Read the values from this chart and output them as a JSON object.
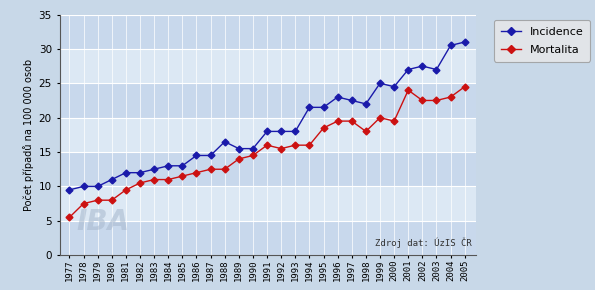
{
  "years": [
    1977,
    1978,
    1979,
    1980,
    1981,
    1982,
    1983,
    1984,
    1985,
    1986,
    1987,
    1988,
    1989,
    1990,
    1991,
    1992,
    1993,
    1994,
    1995,
    1996,
    1997,
    1998,
    1999,
    2000,
    2001,
    2002,
    2003,
    2004,
    2005
  ],
  "incidence": [
    9.5,
    10.0,
    10.0,
    11.0,
    12.0,
    12.0,
    12.5,
    13.0,
    13.0,
    14.5,
    14.5,
    16.5,
    15.5,
    15.5,
    18.0,
    18.0,
    18.0,
    21.5,
    21.5,
    23.0,
    22.5,
    22.0,
    25.0,
    24.5,
    27.0,
    27.5,
    27.0,
    30.5,
    31.0
  ],
  "mortalita": [
    5.5,
    7.5,
    8.0,
    8.0,
    9.5,
    10.5,
    11.0,
    11.0,
    11.5,
    12.0,
    12.5,
    12.5,
    14.0,
    14.5,
    16.0,
    15.5,
    16.0,
    16.0,
    18.5,
    19.5,
    19.5,
    18.0,
    20.0,
    19.5,
    24.0,
    22.5,
    22.5,
    23.0,
    24.5
  ],
  "incidence_color": "#1a1aaa",
  "mortalita_color": "#cc1111",
  "bg_color": "#c8d8e8",
  "plot_bg_color": "#d8e4f0",
  "band_color_light": "#dce8f4",
  "band_color_dark": "#c8d8ec",
  "grid_color": "#ffffff",
  "ylabel": "Počet případů na 100 000 osob",
  "source_text": "Zdroj dat: ÚzIS ČR",
  "iba_text": "IBA",
  "ylim": [
    0,
    35
  ],
  "yticks": [
    0,
    5,
    10,
    15,
    20,
    25,
    30,
    35
  ],
  "legend_labels": [
    "Incidence",
    "Mortalita"
  ],
  "legend_bg": "#e8e8e8"
}
